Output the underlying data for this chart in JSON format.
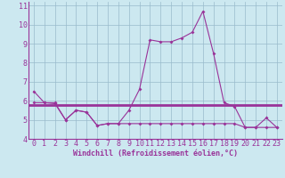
{
  "xlabel": "Windchill (Refroidissement éolien,°C)",
  "bg_color": "#cce8f0",
  "line_color": "#993399",
  "grid_color": "#99bbcc",
  "spine_color": "#993399",
  "xlim": [
    -0.5,
    23.5
  ],
  "ylim": [
    4,
    11.2
  ],
  "yticks": [
    4,
    5,
    6,
    7,
    8,
    9,
    10,
    11
  ],
  "xticks": [
    0,
    1,
    2,
    3,
    4,
    5,
    6,
    7,
    8,
    9,
    10,
    11,
    12,
    13,
    14,
    15,
    16,
    17,
    18,
    19,
    20,
    21,
    22,
    23
  ],
  "series1": [
    6.5,
    5.9,
    5.9,
    5.0,
    5.5,
    5.4,
    4.7,
    4.8,
    4.8,
    5.5,
    6.6,
    9.2,
    9.1,
    9.1,
    9.3,
    9.6,
    10.7,
    8.5,
    5.9,
    5.7,
    4.6,
    4.6,
    5.1,
    4.6
  ],
  "series2_flat": 5.8,
  "series3": [
    5.9,
    5.9,
    5.85,
    5.0,
    5.5,
    5.4,
    4.7,
    4.8,
    4.8,
    4.8,
    4.8,
    4.8,
    4.8,
    4.8,
    4.8,
    4.8,
    4.8,
    4.8,
    4.8,
    4.8,
    4.6,
    4.6,
    4.6,
    4.6
  ],
  "tick_fontsize": 6,
  "xlabel_fontsize": 6
}
